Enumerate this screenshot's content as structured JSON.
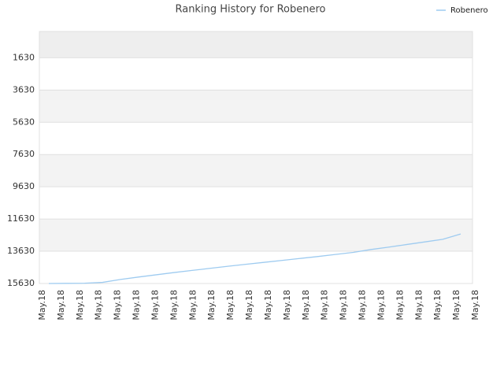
{
  "chart_data": {
    "type": "line",
    "title": "Ranking History for Robenero",
    "categories": [
      "May.18",
      "May.18",
      "May.18",
      "May.18",
      "May.18",
      "May.18",
      "May.18",
      "May.18",
      "May.18",
      "May.18",
      "May.18",
      "May.18",
      "May.18",
      "May.18",
      "May.18",
      "May.18",
      "May.18",
      "May.18",
      "May.18",
      "May.18",
      "May.18",
      "May.18",
      "May.18",
      "May.18"
    ],
    "series": [
      {
        "name": "Robenero",
        "color": "#9ecbf0",
        "values": [
          15630,
          15620,
          15610,
          15560,
          15380,
          15230,
          15090,
          14950,
          14820,
          14690,
          14560,
          14440,
          14320,
          14200,
          14080,
          13960,
          13830,
          13700,
          13520,
          13370,
          13210,
          13050,
          12890,
          12560
        ]
      }
    ],
    "ylim": [
      15630,
      0
    ],
    "yticks": [
      1630,
      3630,
      5630,
      7630,
      9630,
      11630,
      13630,
      15630
    ],
    "grid": true,
    "legend": "top-right"
  }
}
